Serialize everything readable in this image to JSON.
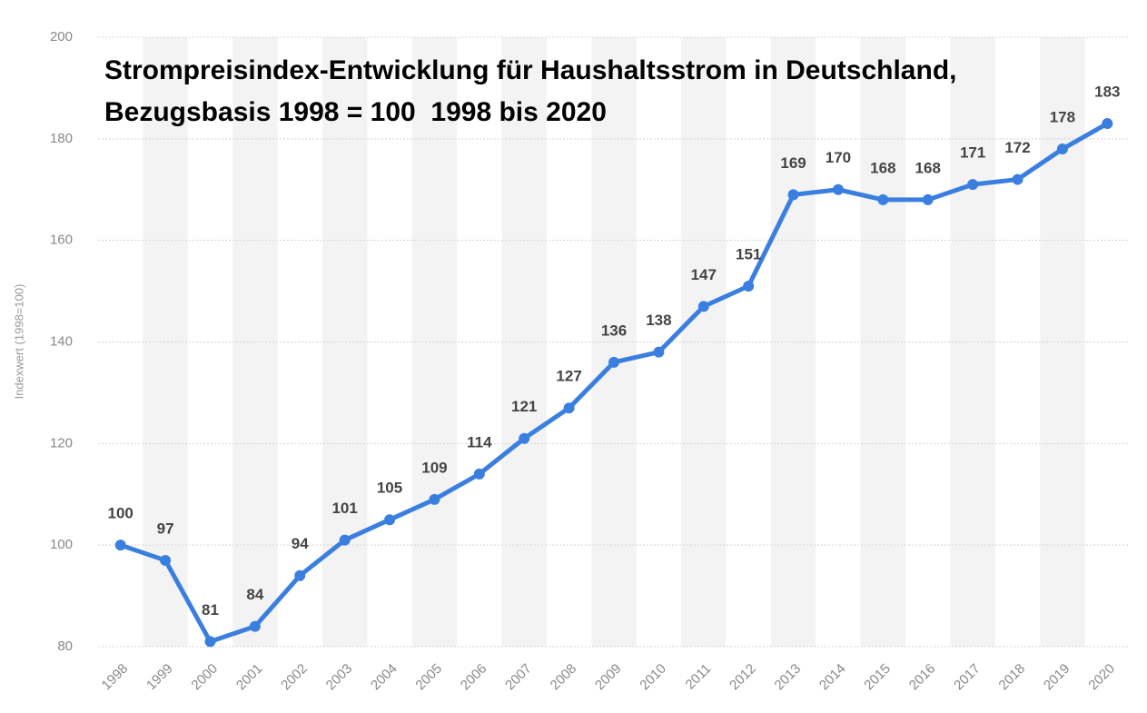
{
  "chart_data": {
    "type": "line",
    "title": "Strompreisindex-Entwicklung für Haushaltsstrom in Deutschland, Bezugsbasis 1998 = 100  1998 bis 2020",
    "y_label": "Indexwert (1998=100)",
    "categories": [
      "1998",
      "1999",
      "2000",
      "2001",
      "2002",
      "2003",
      "2004",
      "2005",
      "2006",
      "2007",
      "2008",
      "2009",
      "2010",
      "2011",
      "2012",
      "2013",
      "2014",
      "2015",
      "2016",
      "2017",
      "2018",
      "2019",
      "2020"
    ],
    "values": [
      100,
      97,
      81,
      84,
      94,
      101,
      105,
      109,
      114,
      121,
      127,
      136,
      138,
      147,
      151,
      169,
      170,
      168,
      168,
      171,
      172,
      178,
      183
    ],
    "color": "#3a7fe0",
    "ylim": [
      80,
      200
    ],
    "yticks": [
      80,
      100,
      120,
      140,
      160,
      180,
      200
    ],
    "grid": true
  }
}
